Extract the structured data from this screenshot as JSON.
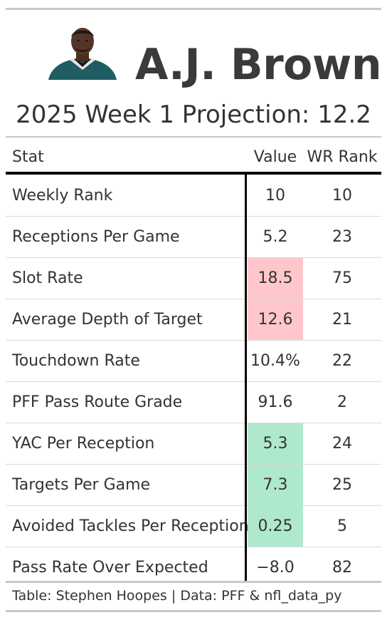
{
  "header": {
    "player_name": "A.J. Brown",
    "subtitle": "2025 Week 1 Projection: 12.2"
  },
  "table": {
    "columns": [
      "Stat",
      "Value",
      "WR Rank"
    ],
    "rows": [
      {
        "stat": "Weekly Rank",
        "value": "10",
        "rank": "10",
        "highlight": ""
      },
      {
        "stat": "Receptions Per Game",
        "value": "5.2",
        "rank": "23",
        "highlight": ""
      },
      {
        "stat": "Slot Rate",
        "value": "18.5",
        "rank": "75",
        "highlight": "#ffc7cb"
      },
      {
        "stat": "Average Depth of Target",
        "value": "12.6",
        "rank": "21",
        "highlight": "#ffc7cb"
      },
      {
        "stat": "Touchdown Rate",
        "value": "10.4%",
        "rank": "22",
        "highlight": ""
      },
      {
        "stat": "PFF Pass Route Grade",
        "value": "91.6",
        "rank": "2",
        "highlight": ""
      },
      {
        "stat": "YAC Per Reception",
        "value": "5.3",
        "rank": "24",
        "highlight": "#aee9cd"
      },
      {
        "stat": "Targets Per Game",
        "value": "7.3",
        "rank": "25",
        "highlight": "#aee9cd"
      },
      {
        "stat": "Avoided Tackles Per Reception",
        "value": "0.25",
        "rank": "5",
        "highlight": "#aee9cd"
      },
      {
        "stat": "Pass Rate Over Expected",
        "value": "−8.0",
        "rank": "82",
        "highlight": ""
      }
    ]
  },
  "footer": {
    "credit": "Table: Stephen Hoopes | Data: PFF & nfl_data_py"
  },
  "colors": {
    "negative_highlight": "#ffc7cb",
    "positive_highlight": "#aee9cd"
  },
  "icons": {
    "headshot": "player-headshot-photo"
  }
}
